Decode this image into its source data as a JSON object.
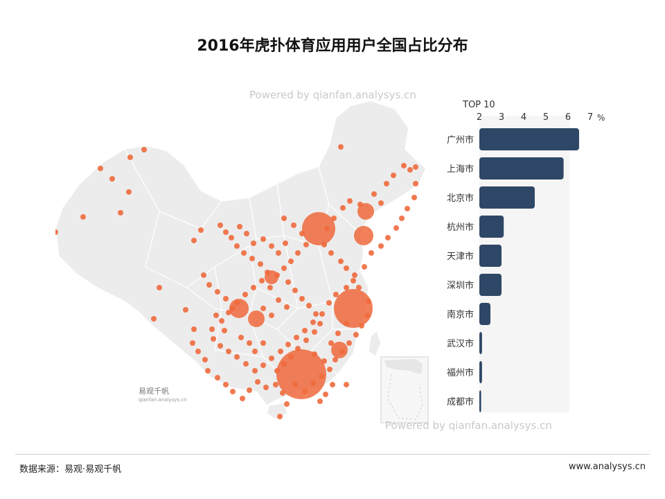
{
  "title": "2016年虎扑体育应用用户全国占比分布",
  "watermark_top": "Powered by qianfan.analysys.cn",
  "watermark_bottom": "Powered by qianfan.analysys.cn",
  "brand_label": "易观千帆",
  "brand_sub": "qianfan.analysys.cn",
  "footer": {
    "source": "数据来源：易观·易观千帆",
    "site": "www.analysys.cn"
  },
  "colors": {
    "bar": "#2e4766",
    "bubble": "#ef6a3d",
    "map_fill": "#ececec",
    "map_stroke": "#ffffff"
  },
  "chart_data": {
    "type": "bar",
    "orientation": "horizontal",
    "title": "TOP 10",
    "unit": "%",
    "xlim": [
      2,
      7
    ],
    "ticks": [
      2,
      3,
      4,
      5,
      6,
      7
    ],
    "categories": [
      "广州市",
      "上海市",
      "北京市",
      "杭州市",
      "天津市",
      "深圳市",
      "南京市",
      "武汉市",
      "福州市",
      "成都市"
    ],
    "values": [
      6.5,
      5.8,
      4.5,
      3.1,
      3.0,
      3.0,
      2.5,
      2.12,
      2.12,
      2.08
    ]
  }
}
